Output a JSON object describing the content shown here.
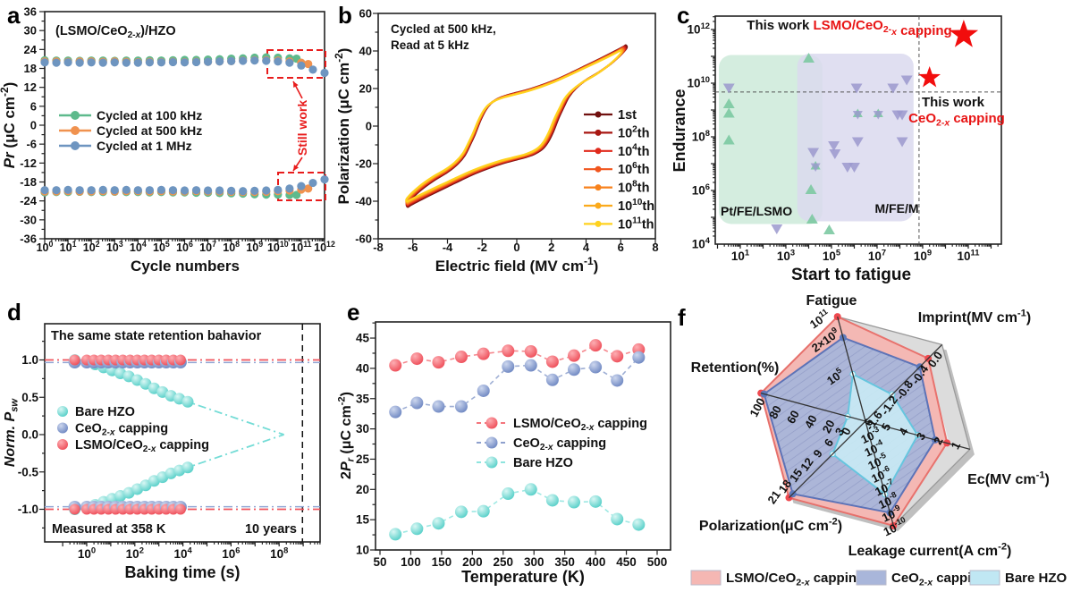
{
  "figure": {
    "background": "#ffffff",
    "panel_labels": [
      "a",
      "b",
      "c",
      "d",
      "e",
      "f"
    ]
  },
  "chart_data": [
    {
      "panel": "a",
      "type": "scatter",
      "title": "(LSMO/CeO_{2-*x*})/HZO",
      "xlabel": "Cycle numbers",
      "ylabel": "*Pr* (μC cm^{-2})",
      "xscale": "log",
      "x_tick_exponents": [
        0,
        1,
        2,
        3,
        4,
        5,
        6,
        7,
        8,
        9,
        10,
        11,
        12
      ],
      "ylim": [
        -36,
        36
      ],
      "ytick_step": 6,
      "still_work": "Still work",
      "box_color": "#e81c1c",
      "series": [
        {
          "name": "Cycled at 100 kHz",
          "color": "#5eba8c",
          "x": [
            0,
            0.5,
            1,
            1.5,
            2,
            2.5,
            3,
            3.5,
            4,
            4.5,
            5,
            5.5,
            6,
            6.5,
            7,
            7.5,
            8,
            8.5,
            9,
            9.5,
            10,
            10.5,
            10.8
          ],
          "top": [
            20.6,
            20.5,
            20.5,
            20.4,
            20.5,
            20.5,
            20.4,
            20.5,
            20.5,
            20.6,
            20.5,
            20.6,
            20.7,
            20.7,
            20.8,
            20.9,
            21.1,
            21.2,
            21.4,
            21.5,
            21.4,
            21.2,
            21.1
          ],
          "bottom": [
            -21.3,
            -21.2,
            -21.2,
            -21.1,
            -21.2,
            -21.2,
            -21.1,
            -21.2,
            -21.2,
            -21.3,
            -21.2,
            -21.3,
            -21.3,
            -21.4,
            -21.4,
            -21.5,
            -21.6,
            -21.7,
            -21.9,
            -22.0,
            -22.0,
            -22.1,
            -22.1
          ]
        },
        {
          "name": "Cycled at 500 kHz",
          "color": "#f0924f",
          "x": [
            0,
            0.5,
            1,
            1.5,
            2,
            2.5,
            3,
            3.5,
            4,
            4.5,
            5,
            5.5,
            6,
            6.5,
            7,
            7.5,
            8,
            8.5,
            9,
            9.5,
            10,
            10.5,
            11,
            11.3
          ],
          "top": [
            20.2,
            20.2,
            20.1,
            20.2,
            20.2,
            20.1,
            20.2,
            20.1,
            20.0,
            20.1,
            20.0,
            20.1,
            20.0,
            20.1,
            20.1,
            20.2,
            20.3,
            20.5,
            20.6,
            20.6,
            20.5,
            20.2,
            19.8,
            19.4
          ],
          "bottom": [
            -21.0,
            -21.0,
            -20.9,
            -21.0,
            -21.0,
            -20.9,
            -21.0,
            -20.9,
            -20.9,
            -21.0,
            -20.9,
            -21.0,
            -21.0,
            -20.9,
            -21.0,
            -21.0,
            -21.1,
            -21.2,
            -21.2,
            -21.1,
            -20.9,
            -20.7,
            -20.4,
            -20.1
          ]
        },
        {
          "name": "Cycled at 1 MHz",
          "color": "#6e95c0",
          "x": [
            0,
            0.5,
            1,
            1.5,
            2,
            2.5,
            3,
            3.5,
            4,
            4.5,
            5,
            5.5,
            6,
            6.5,
            7,
            7.5,
            8,
            8.5,
            9,
            9.5,
            10,
            10.5,
            11,
            11.5,
            12
          ],
          "top": [
            19.9,
            19.8,
            19.9,
            19.8,
            19.9,
            19.8,
            19.9,
            19.8,
            19.8,
            19.9,
            19.9,
            20.0,
            19.9,
            20.0,
            20.1,
            20.2,
            20.3,
            20.4,
            20.5,
            20.4,
            20.2,
            19.8,
            18.9,
            17.6,
            16.6
          ],
          "bottom": [
            -20.6,
            -20.6,
            -20.5,
            -20.6,
            -20.6,
            -20.5,
            -20.6,
            -20.5,
            -20.6,
            -20.6,
            -20.5,
            -20.6,
            -20.7,
            -20.6,
            -20.7,
            -20.7,
            -20.8,
            -20.9,
            -20.8,
            -20.7,
            -20.5,
            -20.1,
            -19.3,
            -18.3,
            -17.2
          ]
        }
      ]
    },
    {
      "panel": "b",
      "type": "line",
      "annotation": [
        "Cycled at 500 kHz,",
        "Read at 5 kHz"
      ],
      "xlabel": "Electric field (MV cm^{-1})",
      "ylabel": "Polarization (μC cm^{-2})",
      "xlim": [
        -8,
        8
      ],
      "xtick_step": 2,
      "ylim": [
        -60,
        60
      ],
      "ytick_step": 20,
      "series": [
        {
          "label": "1st",
          "color": "#70100f"
        },
        {
          "label": "10^{2}th",
          "color": "#a81712"
        },
        {
          "label": "10^{4}th",
          "color": "#e02a1c"
        },
        {
          "label": "10^{6}th",
          "color": "#f1551d"
        },
        {
          "label": "10^{8}th",
          "color": "#f8821c"
        },
        {
          "label": "10^{10}th",
          "color": "#fbaa1c"
        },
        {
          "label": "10^{11}th",
          "color": "#ffd21e"
        }
      ],
      "loop_upper": [
        [
          -6.3,
          -41
        ],
        [
          -5.6,
          -34.5
        ],
        [
          -4.8,
          -29
        ],
        [
          -4.0,
          -24.5
        ],
        [
          -3.4,
          -20
        ],
        [
          -3.0,
          -15.5
        ],
        [
          -2.7,
          -10
        ],
        [
          -2.4,
          -4
        ],
        [
          -2.1,
          3
        ],
        [
          -1.8,
          8.5
        ],
        [
          -1.5,
          12
        ],
        [
          -1.1,
          14.5
        ],
        [
          -0.6,
          16.3
        ],
        [
          0,
          17.8
        ],
        [
          0.8,
          19.8
        ],
        [
          1.6,
          22.3
        ],
        [
          2.4,
          25.2
        ],
        [
          3.2,
          28.6
        ],
        [
          4.0,
          32.2
        ],
        [
          4.8,
          35.8
        ],
        [
          5.6,
          39.5
        ],
        [
          6.15,
          42.2
        ],
        [
          6.3,
          43
        ]
      ],
      "loop_lower": [
        [
          6.3,
          41
        ],
        [
          5.6,
          34.5
        ],
        [
          4.8,
          29
        ],
        [
          4.0,
          24.5
        ],
        [
          3.4,
          20
        ],
        [
          3.0,
          15.5
        ],
        [
          2.7,
          10
        ],
        [
          2.4,
          4
        ],
        [
          2.1,
          -3
        ],
        [
          1.8,
          -8.5
        ],
        [
          1.5,
          -12
        ],
        [
          1.1,
          -14.5
        ],
        [
          0.6,
          -16.3
        ],
        [
          0,
          -17.8
        ],
        [
          -0.8,
          -19.8
        ],
        [
          -1.6,
          -22.3
        ],
        [
          -2.4,
          -25.2
        ],
        [
          -3.2,
          -28.6
        ],
        [
          -4.0,
          -32.2
        ],
        [
          -4.8,
          -35.8
        ],
        [
          -5.6,
          -39.5
        ],
        [
          -6.15,
          -42.2
        ],
        [
          -6.3,
          -43
        ]
      ]
    },
    {
      "panel": "c",
      "type": "scatter",
      "xlabel": "Start to fatigue",
      "ylabel": "Endurance",
      "x_tick_exponents": [
        1,
        3,
        5,
        7,
        9,
        11
      ],
      "y_tick_exponents": [
        4,
        6,
        8,
        10,
        12
      ],
      "colors": {
        "green_marker": "#7cc9a2",
        "purple_marker": "#9b99ce",
        "green_region": "#d0ecdc",
        "purple_region": "#dbd9ee",
        "star": "#f20d0d"
      },
      "green_points": [
        [
          0.5,
          9.2
        ],
        [
          0.5,
          8.85
        ],
        [
          0.5,
          7.85
        ],
        [
          4.0,
          10.9
        ],
        [
          4.1,
          6.0
        ],
        [
          4.15,
          4.9
        ],
        [
          4.9,
          4.5
        ]
      ],
      "purple_points": [
        [
          0.5,
          9.85
        ],
        [
          2.6,
          4.6
        ],
        [
          4.2,
          7.45
        ],
        [
          5.1,
          7.7
        ],
        [
          5.15,
          7.4
        ],
        [
          5.7,
          6.9
        ],
        [
          6.0,
          6.9
        ],
        [
          6.15,
          7.85
        ],
        [
          8.1,
          7.85
        ],
        [
          6.1,
          9.85
        ],
        [
          7.7,
          9.85
        ],
        [
          7.9,
          8.85
        ],
        [
          8.1,
          8.85
        ],
        [
          8.3,
          10.15
        ]
      ],
      "hexagram_points": [
        [
          4.3,
          6.9
        ],
        [
          6.15,
          8.85
        ],
        [
          7.05,
          8.85
        ]
      ],
      "red_stars": [
        [
          9.3,
          10.2,
          13
        ],
        [
          10.8,
          11.8,
          17
        ]
      ],
      "dashed": {
        "h_exp": 9.67,
        "v_exp": 8.84
      },
      "regions": {
        "green": {
          "x": [
            -0.85,
            4.6
          ],
          "y": [
            4.75,
            11.05
          ],
          "label": "Pt/FE/LSMO"
        },
        "purple": {
          "x": [
            3.5,
            8.6
          ],
          "y": [
            4.85,
            11.1
          ],
          "label": "M/FE/M"
        }
      },
      "texts": {
        "top_black": "This work ",
        "top_red": "LSMO/CeO_{2-*x*} capping",
        "side_black": "This work",
        "side_red": "CeO_{2-*x*} capping"
      }
    },
    {
      "panel": "d",
      "type": "scatter",
      "title": "The same state retention bahavior",
      "xlabel": "Baking time (s)",
      "ylabel": "*Norm. P*_{*sw*}",
      "x_tick_exponents": [
        0,
        2,
        4,
        6,
        8
      ],
      "yticks": [
        -1.0,
        -0.5,
        0.0,
        0.5,
        1.0
      ],
      "vline_exp": 8.97,
      "texts": {
        "measured": "Measured at 358 K",
        "years": "10 years"
      },
      "bare": {
        "name": "Bare HZO",
        "color": "#74dcd6",
        "logt": [
          -0.5,
          0,
          0.35,
          0.7,
          1.05,
          1.4,
          1.75,
          2.1,
          2.45,
          2.8,
          3.15,
          3.5,
          3.85,
          4.2
        ],
        "top": [
          1.0,
          0.98,
          0.94,
          0.9,
          0.86,
          0.82,
          0.78,
          0.73,
          0.68,
          0.62,
          0.57,
          0.52,
          0.48,
          0.44
        ],
        "converge": [
          8.2,
          0
        ]
      },
      "ceo": {
        "name": "CeO_{2-*x*} capping",
        "color": "#93a6d4",
        "value": 0.97
      },
      "lsmo": {
        "name": "LSMO/CeO_{2-*x*} capping",
        "color": "#f0545c",
        "value": 1.0
      },
      "logt_flat": [
        -0.5,
        0,
        0.3,
        0.6,
        0.9,
        1.2,
        1.5,
        1.8,
        2.1,
        2.4,
        2.7,
        3.0,
        3.3,
        3.6,
        3.9
      ]
    },
    {
      "panel": "e",
      "type": "line",
      "xlabel": "Temperature (K)",
      "ylabel": "2*P*_{*r*} (μC cm^{-2})",
      "xlim": [
        50,
        500
      ],
      "xtick_step": 50,
      "yticks": [
        10,
        15,
        20,
        25,
        30,
        35,
        40,
        45
      ],
      "temperatures": [
        75,
        110,
        145,
        182,
        218,
        258,
        295,
        330,
        365,
        400,
        435,
        470
      ],
      "series": [
        {
          "name": "LSMO/CeO_{2-*x*} capping",
          "color": "#f2626a",
          "values": [
            40.5,
            41.6,
            41.0,
            41.9,
            42.4,
            42.9,
            42.8,
            41.1,
            42.1,
            43.8,
            42.0,
            43.1
          ]
        },
        {
          "name": "CeO_{2-*x*} capping",
          "color": "#7e93c6",
          "values": [
            32.8,
            34.3,
            33.7,
            33.7,
            36.3,
            40.3,
            40.5,
            38.1,
            39.8,
            40.2,
            38.0,
            41.8
          ]
        },
        {
          "name": "Bare HZO",
          "color": "#7ee0da",
          "values": [
            12.6,
            13.5,
            14.4,
            16.3,
            16.4,
            19.3,
            20.0,
            18.2,
            17.9,
            18.0,
            15.1,
            14.2
          ]
        }
      ]
    },
    {
      "panel": "f",
      "type": "radar",
      "axes": [
        {
          "label": "Fatigue",
          "rot": -35,
          "off": [
            -17,
            3
          ],
          "ticks": [
            {
              "t": 0.45,
              "l": "10^{5}"
            },
            {
              "t": 0.8,
              "l": "2×10^{9}"
            },
            {
              "t": 1.0,
              "l": "10^{11}"
            }
          ]
        },
        {
          "label": "Imprint(MV cm^{-1})",
          "rot": -55,
          "off": [
            -4,
            15
          ],
          "ticks": [
            {
              "t": 0.2,
              "l": "-1.6"
            },
            {
              "t": 0.4,
              "l": "-1.2"
            },
            {
              "t": 0.6,
              "l": "-0.8"
            },
            {
              "t": 0.8,
              "l": "-0.4"
            },
            {
              "t": 1.0,
              "l": "0.0"
            }
          ]
        },
        {
          "label": "Ec(MV cm^{-1})",
          "rot": -62,
          "off": [
            -12,
            -6
          ],
          "ticks": [
            {
              "t": 0.167,
              "l": "6"
            },
            {
              "t": 0.333,
              "l": "5"
            },
            {
              "t": 0.5,
              "l": "4"
            },
            {
              "t": 0.667,
              "l": "3"
            },
            {
              "t": 0.833,
              "l": "2"
            },
            {
              "t": 1.0,
              "l": "1"
            }
          ]
        },
        {
          "label": "Leakage current(A cm^{-2})",
          "rot": -25,
          "off": [
            4,
            2
          ],
          "ticks": [
            {
              "t": 0.125,
              "l": "10^{-3}"
            },
            {
              "t": 0.25,
              "l": "10^{-4}"
            },
            {
              "t": 0.375,
              "l": "10^{-5}"
            },
            {
              "t": 0.5,
              "l": "10^{-6}"
            },
            {
              "t": 0.625,
              "l": "10^{-7}"
            },
            {
              "t": 0.75,
              "l": "10^{-8}"
            },
            {
              "t": 0.875,
              "l": "10^{-9}"
            },
            {
              "t": 1.0,
              "l": "10^{-10}"
            }
          ]
        },
        {
          "label": "Polarization(μC cm^{-2})",
          "rot": -55,
          "off": [
            -13,
            -2
          ],
          "ticks": [
            {
              "t": 0.143,
              "l": "3"
            },
            {
              "t": 0.286,
              "l": "6"
            },
            {
              "t": 0.429,
              "l": "9"
            },
            {
              "t": 0.571,
              "l": "12"
            },
            {
              "t": 0.714,
              "l": "15"
            },
            {
              "t": 0.857,
              "l": "18"
            },
            {
              "t": 1.0,
              "l": "21"
            }
          ]
        },
        {
          "label": "Retention(%)",
          "rot": -62,
          "off": [
            0,
            14
          ],
          "ticks": [
            {
              "t": 0.15,
              "l": "0"
            },
            {
              "t": 0.32,
              "l": "20"
            },
            {
              "t": 0.49,
              "l": "40"
            },
            {
              "t": 0.66,
              "l": "60"
            },
            {
              "t": 0.83,
              "l": "80"
            },
            {
              "t": 1.0,
              "l": "100"
            }
          ]
        }
      ],
      "series": [
        {
          "name": "LSMO/CeO_{2-*x*} capping",
          "fill": "#f5b7b3",
          "stroke": "#e96f6a",
          "dot": "#ee4a50",
          "t": [
            1.0,
            0.82,
            0.78,
            1.0,
            1.0,
            1.0
          ],
          "values": {
            "fatigue": "1e11",
            "imprint": "-0.35",
            "ec": "2.3",
            "leakage": "1e-10",
            "polarization": "21",
            "retention": "100"
          }
        },
        {
          "name": "CeO_{2-*x*} capping",
          "fill": "#a9b6da",
          "stroke": "#5570b8",
          "dot": "#5d79bb",
          "t": [
            0.8,
            0.71,
            0.667,
            0.875,
            0.95,
            0.97
          ],
          "values": {
            "fatigue": "2e9",
            "imprint": "-0.6",
            "ec": "3",
            "leakage": "1e-9",
            "polarization": "20",
            "retention": "97"
          }
        },
        {
          "name": "Bare HZO",
          "fill": "#c9ebf5",
          "stroke": "#5fc8e0",
          "dot": "#e9fafd",
          "t": [
            0.45,
            0.35,
            0.5,
            0.7,
            0.43,
            0.17
          ],
          "values": {
            "fatigue": "1e5",
            "imprint": "-1.3",
            "ec": "4",
            "leakage": "3e-8",
            "polarization": "9",
            "retention": "2"
          }
        }
      ],
      "legend": [
        {
          "label": "LSMO/CeO_{2-*x*} capping",
          "color": "#f5b7b3"
        },
        {
          "label": "CeO_{2-*x*} capping",
          "color": "#a9b6da"
        },
        {
          "label": "Bare HZO",
          "color": "#c0e7f3"
        }
      ]
    }
  ]
}
